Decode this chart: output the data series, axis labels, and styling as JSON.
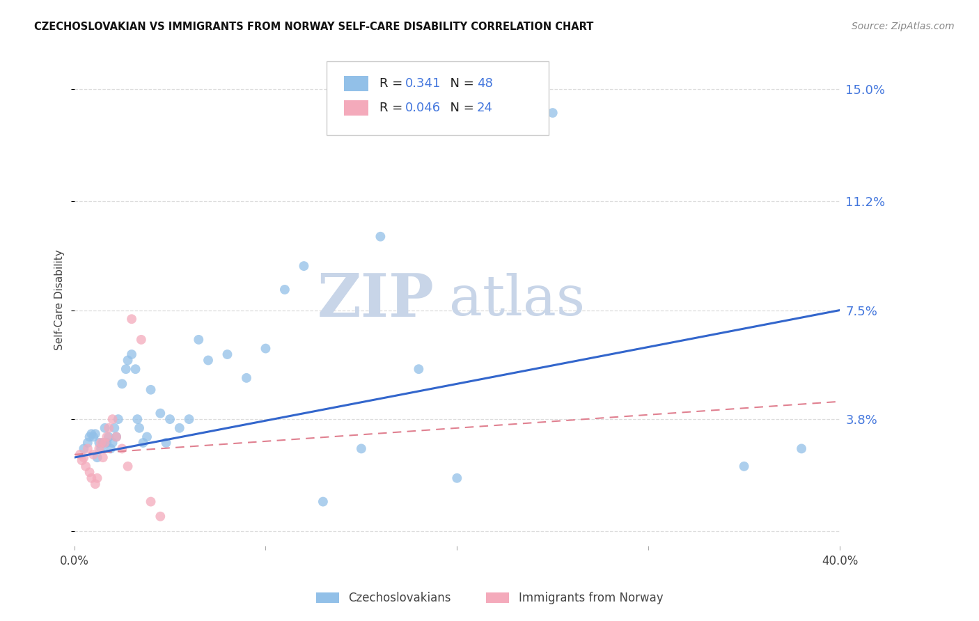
{
  "title": "CZECHOSLOVAKIAN VS IMMIGRANTS FROM NORWAY SELF-CARE DISABILITY CORRELATION CHART",
  "source": "Source: ZipAtlas.com",
  "ylabel": "Self-Care Disability",
  "xlim": [
    0.0,
    0.4
  ],
  "ylim": [
    -0.005,
    0.162
  ],
  "yticks": [
    0.0,
    0.038,
    0.075,
    0.112,
    0.15
  ],
  "ytick_labels": [
    "",
    "3.8%",
    "7.5%",
    "11.2%",
    "15.0%"
  ],
  "blue_R": 0.341,
  "blue_N": 48,
  "pink_R": 0.046,
  "pink_N": 24,
  "blue_color": "#92C0E8",
  "pink_color": "#F4AABB",
  "trend_blue_color": "#3366CC",
  "trend_pink_color": "#E08090",
  "watermark_zip": "ZIP",
  "watermark_atlas": "atlas",
  "watermark_color": "#C8D5E8",
  "blue_trend_x0": 0.0,
  "blue_trend_y0": 0.025,
  "blue_trend_x1": 0.4,
  "blue_trend_y1": 0.075,
  "pink_trend_x0": 0.0,
  "pink_trend_y0": 0.026,
  "pink_trend_x1": 0.4,
  "pink_trend_y1": 0.044,
  "blue_x": [
    0.005,
    0.007,
    0.008,
    0.009,
    0.01,
    0.011,
    0.012,
    0.013,
    0.014,
    0.015,
    0.016,
    0.017,
    0.018,
    0.019,
    0.02,
    0.021,
    0.022,
    0.023,
    0.025,
    0.027,
    0.028,
    0.03,
    0.032,
    0.033,
    0.034,
    0.036,
    0.038,
    0.04,
    0.045,
    0.048,
    0.05,
    0.055,
    0.06,
    0.065,
    0.07,
    0.08,
    0.09,
    0.1,
    0.11,
    0.12,
    0.13,
    0.15,
    0.16,
    0.18,
    0.2,
    0.25,
    0.35,
    0.38
  ],
  "blue_y": [
    0.028,
    0.03,
    0.032,
    0.033,
    0.032,
    0.033,
    0.025,
    0.03,
    0.028,
    0.03,
    0.035,
    0.03,
    0.032,
    0.028,
    0.03,
    0.035,
    0.032,
    0.038,
    0.05,
    0.055,
    0.058,
    0.06,
    0.055,
    0.038,
    0.035,
    0.03,
    0.032,
    0.048,
    0.04,
    0.03,
    0.038,
    0.035,
    0.038,
    0.065,
    0.058,
    0.06,
    0.052,
    0.062,
    0.082,
    0.09,
    0.01,
    0.028,
    0.1,
    0.055,
    0.018,
    0.142,
    0.022,
    0.028
  ],
  "pink_x": [
    0.003,
    0.004,
    0.005,
    0.006,
    0.007,
    0.008,
    0.009,
    0.01,
    0.011,
    0.012,
    0.013,
    0.014,
    0.015,
    0.016,
    0.017,
    0.018,
    0.02,
    0.022,
    0.025,
    0.028,
    0.03,
    0.035,
    0.04,
    0.045
  ],
  "pink_y": [
    0.026,
    0.024,
    0.025,
    0.022,
    0.028,
    0.02,
    0.018,
    0.026,
    0.016,
    0.018,
    0.028,
    0.03,
    0.025,
    0.03,
    0.032,
    0.035,
    0.038,
    0.032,
    0.028,
    0.022,
    0.072,
    0.065,
    0.01,
    0.005
  ]
}
